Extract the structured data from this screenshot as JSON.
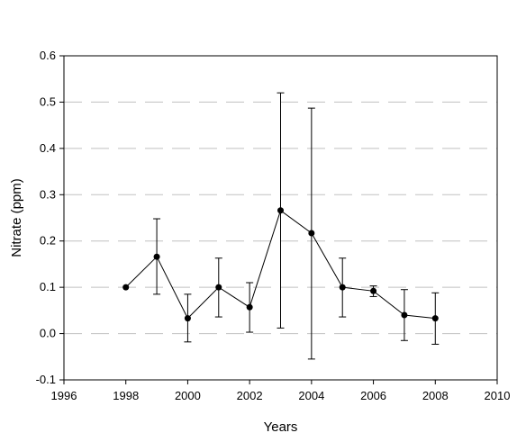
{
  "chart_data": {
    "type": "scatter",
    "title": "",
    "xlabel": "Years",
    "ylabel": "Nitrate (ppm)",
    "xlim": [
      1996,
      2010
    ],
    "ylim": [
      -0.1,
      0.6
    ],
    "x_ticks": [
      1996,
      1998,
      2000,
      2002,
      2004,
      2006,
      2008,
      2010
    ],
    "y_ticks": [
      -0.1,
      0.0,
      0.1,
      0.2,
      0.3,
      0.4,
      0.5,
      0.6
    ],
    "x_tick_labels": [
      "1996",
      "1998",
      "2000",
      "2002",
      "2004",
      "2006",
      "2008",
      "2010"
    ],
    "y_tick_labels": [
      "-0.1",
      "0.0",
      "0.1",
      "0.2",
      "0.3",
      "0.4",
      "0.5",
      "0.6"
    ],
    "grid": "horizontal dashed",
    "connected_line": true,
    "marker": "filled circle",
    "series": [
      {
        "x": [
          1998,
          1999,
          2000,
          2001,
          2002,
          2003,
          2004,
          2005,
          2006,
          2007,
          2008
        ],
        "y": [
          0.1,
          0.166,
          0.033,
          0.1,
          0.057,
          0.266,
          0.217,
          0.1,
          0.092,
          0.04,
          0.033
        ],
        "error_low": [
          null,
          0.085,
          -0.018,
          0.036,
          0.003,
          0.012,
          -0.055,
          0.036,
          0.08,
          -0.015,
          -0.023
        ],
        "error_high": [
          null,
          0.248,
          0.085,
          0.163,
          0.11,
          0.52,
          0.487,
          0.163,
          0.103,
          0.095,
          0.088
        ]
      }
    ],
    "colors": {
      "line": "#000000",
      "marker": "#000000",
      "grid": "#c0c0c0",
      "frame": "#000000"
    }
  }
}
